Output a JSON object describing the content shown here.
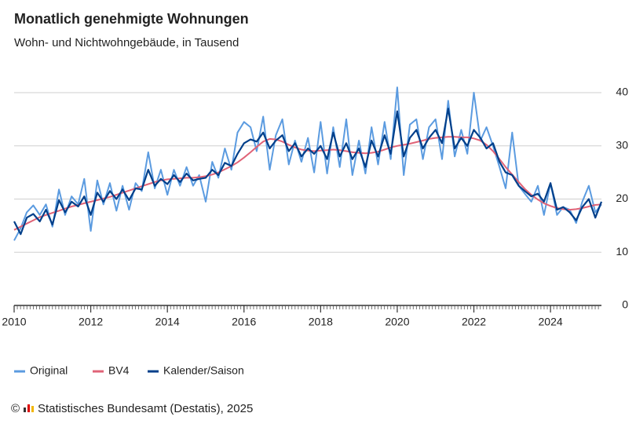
{
  "chart_data": {
    "type": "line",
    "title": "Monatlich genehmigte Wohnungen",
    "subtitle": "Wohn- und Nichtwohngebäude, in Tausend",
    "copyright": "©",
    "source": "Statistisches Bundesamt (Destatis), 2025",
    "x": [
      2010,
      2010.17,
      2010.33,
      2010.5,
      2010.67,
      2010.83,
      2011,
      2011.17,
      2011.33,
      2011.5,
      2011.67,
      2011.83,
      2012,
      2012.17,
      2012.33,
      2012.5,
      2012.67,
      2012.83,
      2013,
      2013.17,
      2013.33,
      2013.5,
      2013.67,
      2013.83,
      2014,
      2014.17,
      2014.33,
      2014.5,
      2014.67,
      2014.83,
      2015,
      2015.17,
      2015.33,
      2015.5,
      2015.67,
      2015.83,
      2016,
      2016.17,
      2016.33,
      2016.5,
      2016.67,
      2016.83,
      2017,
      2017.17,
      2017.33,
      2017.5,
      2017.67,
      2017.83,
      2018,
      2018.17,
      2018.33,
      2018.5,
      2018.67,
      2018.83,
      2019,
      2019.17,
      2019.33,
      2019.5,
      2019.67,
      2019.83,
      2020,
      2020.17,
      2020.33,
      2020.5,
      2020.67,
      2020.83,
      2021,
      2021.17,
      2021.33,
      2021.5,
      2021.67,
      2021.83,
      2022,
      2022.17,
      2022.33,
      2022.5,
      2022.67,
      2022.83,
      2023,
      2023.17,
      2023.33,
      2023.5,
      2023.67,
      2023.83,
      2024,
      2024.17,
      2024.33,
      2024.5,
      2024.67,
      2024.83,
      2025,
      2025.17,
      2025.33
    ],
    "series": [
      {
        "name": "Original",
        "color": "#5b9be0",
        "values": [
          12.2,
          14.5,
          17.5,
          18.8,
          17.0,
          19.0,
          14.8,
          21.8,
          17.0,
          20.5,
          19.0,
          23.8,
          14.0,
          23.5,
          19.0,
          23.0,
          17.8,
          22.5,
          18.0,
          23.0,
          21.5,
          28.8,
          22.0,
          25.5,
          20.8,
          25.5,
          22.5,
          26.0,
          22.5,
          24.5,
          19.5,
          27.0,
          24.0,
          29.5,
          25.5,
          32.5,
          34.5,
          33.5,
          29.0,
          35.5,
          25.5,
          32.0,
          35.0,
          26.5,
          31.0,
          27.0,
          31.5,
          25.0,
          34.5,
          24.8,
          33.5,
          26.0,
          35.0,
          24.5,
          31.0,
          24.8,
          33.5,
          26.5,
          34.5,
          27.5,
          41.0,
          24.5,
          34.0,
          35.0,
          27.5,
          33.5,
          35.0,
          27.5,
          38.5,
          28.0,
          33.0,
          28.5,
          40.0,
          31.0,
          33.5,
          30.0,
          26.0,
          22.0,
          32.5,
          22.5,
          21.0,
          19.5,
          22.5,
          17.0,
          23.0,
          17.0,
          18.5,
          18.0,
          15.5,
          19.5,
          22.5,
          17.5,
          19.0
        ]
      },
      {
        "name": "BV4",
        "color": "#e06377",
        "values": [
          14.2,
          14.8,
          15.4,
          16.0,
          16.6,
          17.0,
          17.4,
          17.8,
          18.2,
          18.6,
          18.9,
          19.2,
          19.5,
          19.8,
          20.1,
          20.4,
          20.8,
          21.2,
          21.6,
          22.0,
          22.4,
          22.8,
          23.2,
          23.5,
          23.7,
          23.8,
          23.9,
          24.0,
          24.0,
          24.1,
          24.3,
          24.6,
          25.0,
          25.6,
          26.2,
          26.9,
          27.8,
          28.8,
          29.8,
          30.8,
          31.3,
          31.2,
          30.8,
          30.2,
          29.7,
          29.3,
          29.1,
          29.0,
          29.1,
          29.2,
          29.3,
          29.2,
          29.0,
          28.8,
          28.7,
          28.6,
          28.7,
          28.9,
          29.3,
          29.7,
          30.0,
          30.2,
          30.4,
          30.7,
          31.0,
          31.3,
          31.5,
          31.6,
          31.7,
          31.7,
          31.6,
          31.6,
          31.4,
          31.0,
          30.2,
          29.0,
          27.5,
          26.0,
          24.6,
          23.2,
          21.9,
          20.8,
          19.9,
          19.2,
          18.7,
          18.3,
          18.1,
          18.0,
          18.1,
          18.3,
          18.6,
          18.9,
          19.0
        ]
      },
      {
        "name": "Kalender/Saison",
        "color": "#003f8a",
        "values": [
          15.8,
          13.4,
          16.5,
          17.2,
          15.8,
          18.0,
          15.2,
          19.8,
          17.5,
          19.5,
          18.6,
          20.5,
          17.0,
          21.2,
          19.5,
          21.5,
          20.0,
          21.8,
          19.8,
          22.0,
          21.8,
          25.5,
          22.5,
          23.8,
          22.8,
          24.5,
          23.2,
          24.8,
          23.5,
          23.8,
          24.0,
          25.5,
          24.5,
          26.8,
          26.2,
          28.5,
          30.5,
          31.2,
          30.8,
          32.5,
          29.5,
          31.0,
          32.0,
          29.0,
          30.5,
          28.0,
          29.5,
          28.5,
          30.0,
          27.5,
          32.5,
          28.0,
          30.5,
          27.5,
          29.5,
          26.0,
          31.0,
          28.0,
          32.0,
          28.5,
          36.5,
          28.0,
          31.5,
          33.0,
          29.5,
          31.5,
          33.0,
          30.5,
          37.0,
          29.5,
          31.5,
          30.0,
          33.0,
          31.5,
          29.5,
          30.5,
          27.0,
          25.0,
          24.5,
          22.5,
          21.5,
          20.5,
          21.0,
          19.5,
          23.0,
          18.0,
          18.5,
          17.5,
          16.0,
          18.5,
          20.0,
          16.5,
          19.5
        ]
      }
    ],
    "xlim": [
      2010,
      2025.33
    ],
    "xticks": [
      2010,
      2012,
      2014,
      2016,
      2018,
      2020,
      2022,
      2024
    ],
    "ylim": [
      0,
      40
    ],
    "yticks": [
      0,
      10,
      20,
      30,
      40
    ],
    "grid": true,
    "legend": "bottom"
  }
}
